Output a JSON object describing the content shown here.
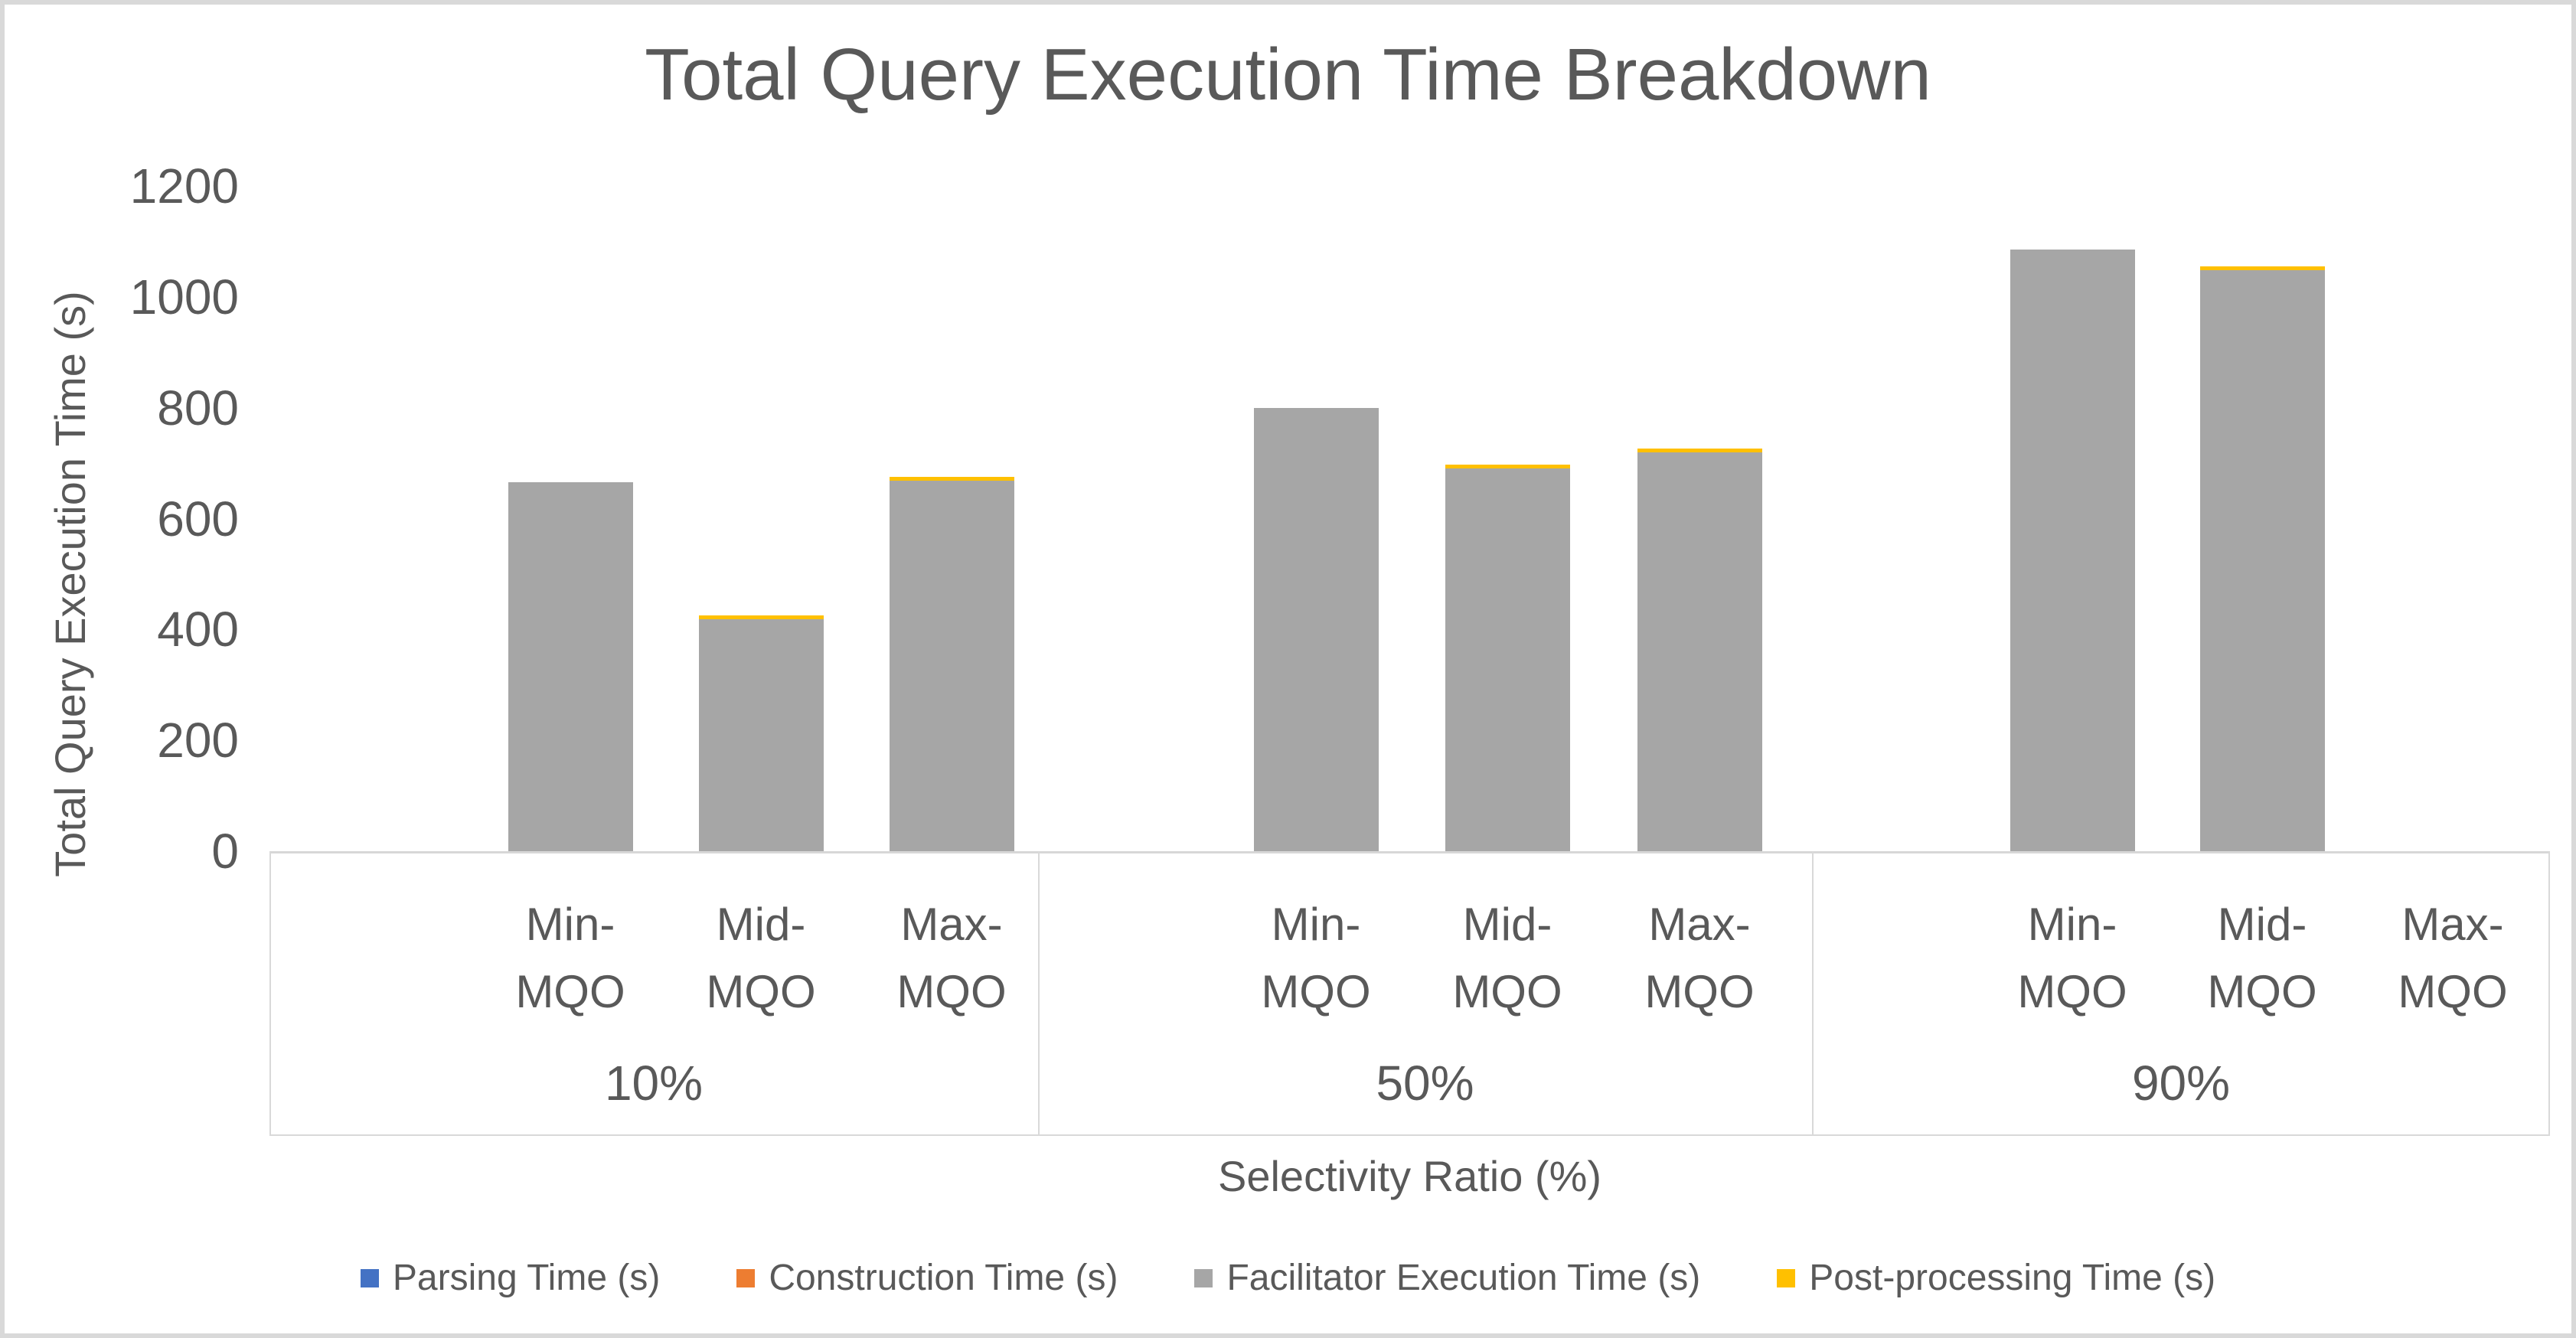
{
  "title": "Total Query Execution Time Breakdown",
  "y_axis": {
    "title": "Total Query Execution Time (s)",
    "ticks": [
      0,
      200,
      400,
      600,
      800,
      1000,
      1200
    ]
  },
  "x_axis": {
    "title": "Selectivity Ratio (%)"
  },
  "legend": [
    {
      "label": "Parsing Time (s)",
      "color": "#4472C4"
    },
    {
      "label": "Construction Time (s)",
      "color": "#ED7D31"
    },
    {
      "label": "Facilitator Execution Time (s)",
      "color": "#A6A6A6"
    },
    {
      "label": "Post-processing Time (s)",
      "color": "#FFC000"
    }
  ],
  "chart_data": {
    "type": "bar",
    "stacked": true,
    "title": "Total Query Execution Time Breakdown",
    "xlabel": "Selectivity Ratio (%)",
    "ylabel": "Total Query Execution Time (s)",
    "ylim": [
      0,
      1200
    ],
    "grid": false,
    "legend_position": "bottom",
    "groups": [
      "10%",
      "50%",
      "90%"
    ],
    "categories": [
      "Min-MQO",
      "Mid-MQO",
      "Max-MQO",
      "Min-MQO",
      "Mid-MQO",
      "Max-MQO",
      "Min-MQO",
      "Mid-MQO",
      "Max-MQO"
    ],
    "series": [
      {
        "name": "Parsing Time (s)",
        "color": "#4472C4",
        "values": [
          0,
          0,
          0,
          0,
          0,
          0,
          0,
          0,
          0
        ]
      },
      {
        "name": "Construction Time (s)",
        "color": "#ED7D31",
        "values": [
          0,
          0,
          0,
          0,
          0,
          0,
          0,
          0,
          0
        ]
      },
      {
        "name": "Facilitator Execution Time (s)",
        "color": "#A6A6A6",
        "values": [
          665,
          418,
          668,
          800,
          690,
          720,
          1085,
          1048,
          0
        ]
      },
      {
        "name": "Post-processing Time (s)",
        "color": "#FFC000",
        "values": [
          0,
          7,
          7,
          0,
          7,
          7,
          0,
          7,
          0
        ]
      }
    ]
  }
}
